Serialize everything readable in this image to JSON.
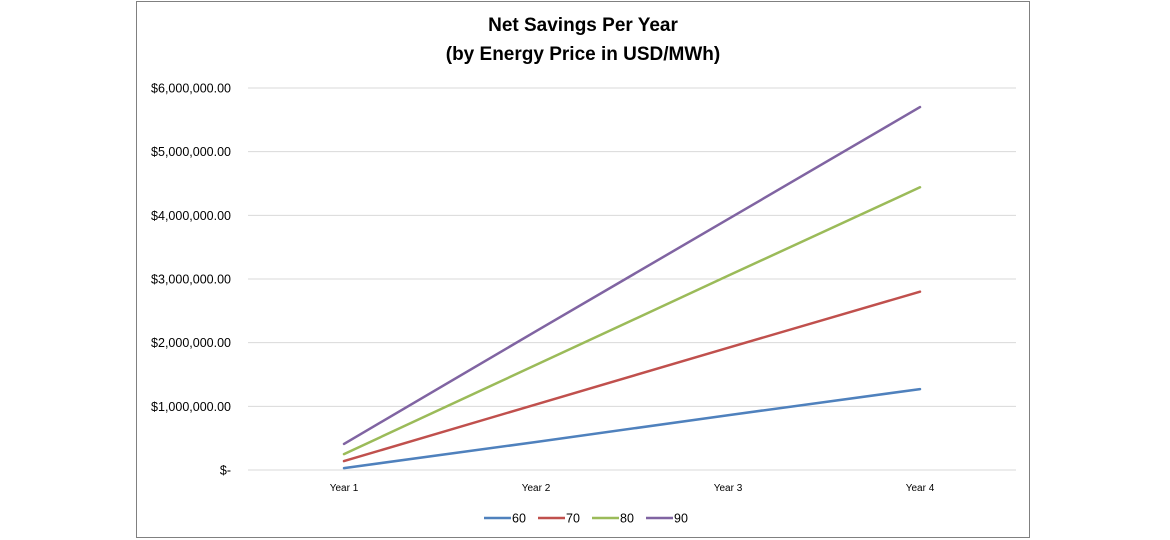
{
  "chart_data": {
    "type": "line",
    "title_lines": [
      "Net Savings Per Year",
      "(by Energy Price in USD/MWh)"
    ],
    "categories": [
      "Year 1",
      "Year 2",
      "Year 3",
      "Year 4"
    ],
    "ylim": [
      0,
      6000000
    ],
    "ytick_values": [
      0,
      1000000,
      2000000,
      3000000,
      4000000,
      5000000,
      6000000
    ],
    "ytick_labels": [
      "$-",
      "$1,000,000.00",
      "$2,000,000.00",
      "$3,000,000.00",
      "$4,000,000.00",
      "$5,000,000.00",
      "$6,000,000.00"
    ],
    "grid": true,
    "legend_position": "bottom",
    "series": [
      {
        "name": "60",
        "color": "#4F81BD",
        "values": [
          30000,
          440000,
          860000,
          1270000
        ]
      },
      {
        "name": "70",
        "color": "#C0504D",
        "values": [
          140000,
          1030000,
          1920000,
          2800000
        ]
      },
      {
        "name": "80",
        "color": "#9BBB59",
        "values": [
          250000,
          1650000,
          3050000,
          4440000
        ]
      },
      {
        "name": "90",
        "color": "#8064A2",
        "values": [
          410000,
          2180000,
          3940000,
          5700000
        ]
      }
    ]
  }
}
